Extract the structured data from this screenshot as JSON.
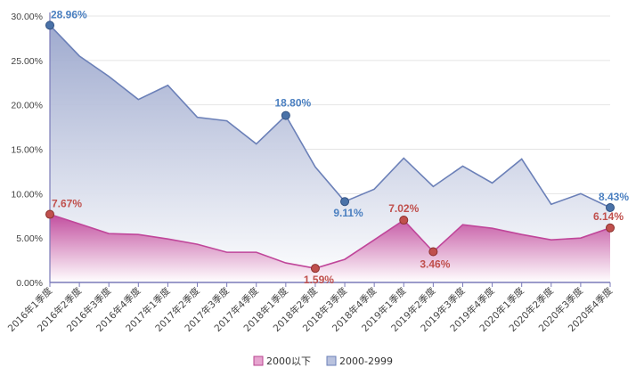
{
  "chart_data": {
    "type": "area",
    "title": "",
    "xlabel": "",
    "ylabel": "",
    "ylim": [
      0,
      30
    ],
    "yticks": [
      0,
      5,
      10,
      15,
      20,
      25,
      30
    ],
    "ytick_labels": [
      "0.00%",
      "5.00%",
      "10.00%",
      "15.00%",
      "20.00%",
      "25.00%",
      "30.00%"
    ],
    "categories": [
      "2016年1季度",
      "2016年2季度",
      "2016年3季度",
      "2016年4季度",
      "2017年1季度",
      "2017年2季度",
      "2017年3季度",
      "2017年4季度",
      "2018年1季度",
      "2018年2季度",
      "2018年3季度",
      "2018年4季度",
      "2019年1季度",
      "2019年2季度",
      "2019年3季度",
      "2019年4季度",
      "2020年1季度",
      "2020年2季度",
      "2020年3季度",
      "2020年4季度"
    ],
    "series": [
      {
        "name": "2000-2999",
        "color": "#6b80b8",
        "marker_color": "#4a72a8",
        "label_color": "#4a7fc0",
        "values": [
          28.96,
          25.5,
          23.2,
          20.6,
          22.2,
          18.6,
          18.2,
          15.6,
          18.8,
          13.0,
          9.11,
          10.5,
          14.0,
          10.8,
          13.1,
          11.2,
          13.9,
          8.8,
          10.0,
          8.43
        ],
        "labeled_points": [
          {
            "index": 0,
            "label": "28.96%"
          },
          {
            "index": 8,
            "label": "18.80%"
          },
          {
            "index": 10,
            "label": "9.11%"
          },
          {
            "index": 19,
            "label": "8.43%"
          }
        ]
      },
      {
        "name": "2000以下",
        "color": "#c0469a",
        "marker_color": "#c0504d",
        "label_color": "#c0504d",
        "values": [
          7.67,
          6.6,
          5.5,
          5.4,
          4.9,
          4.3,
          3.4,
          3.4,
          2.2,
          1.59,
          2.6,
          4.8,
          7.02,
          3.46,
          6.5,
          6.1,
          5.4,
          4.8,
          5.0,
          6.14
        ],
        "labeled_points": [
          {
            "index": 0,
            "label": "7.67%"
          },
          {
            "index": 9,
            "label": "1.59%"
          },
          {
            "index": 12,
            "label": "7.02%"
          },
          {
            "index": 13,
            "label": "3.46%"
          },
          {
            "index": 19,
            "label": "6.14%"
          }
        ]
      }
    ],
    "legend": {
      "position": "bottom-center",
      "entries": [
        {
          "name": "2000以下",
          "swatch": "#e6a4cf",
          "border": "#b8448f"
        },
        {
          "name": "2000-2999",
          "swatch": "#b9c2de",
          "border": "#6b80b8"
        }
      ]
    }
  }
}
